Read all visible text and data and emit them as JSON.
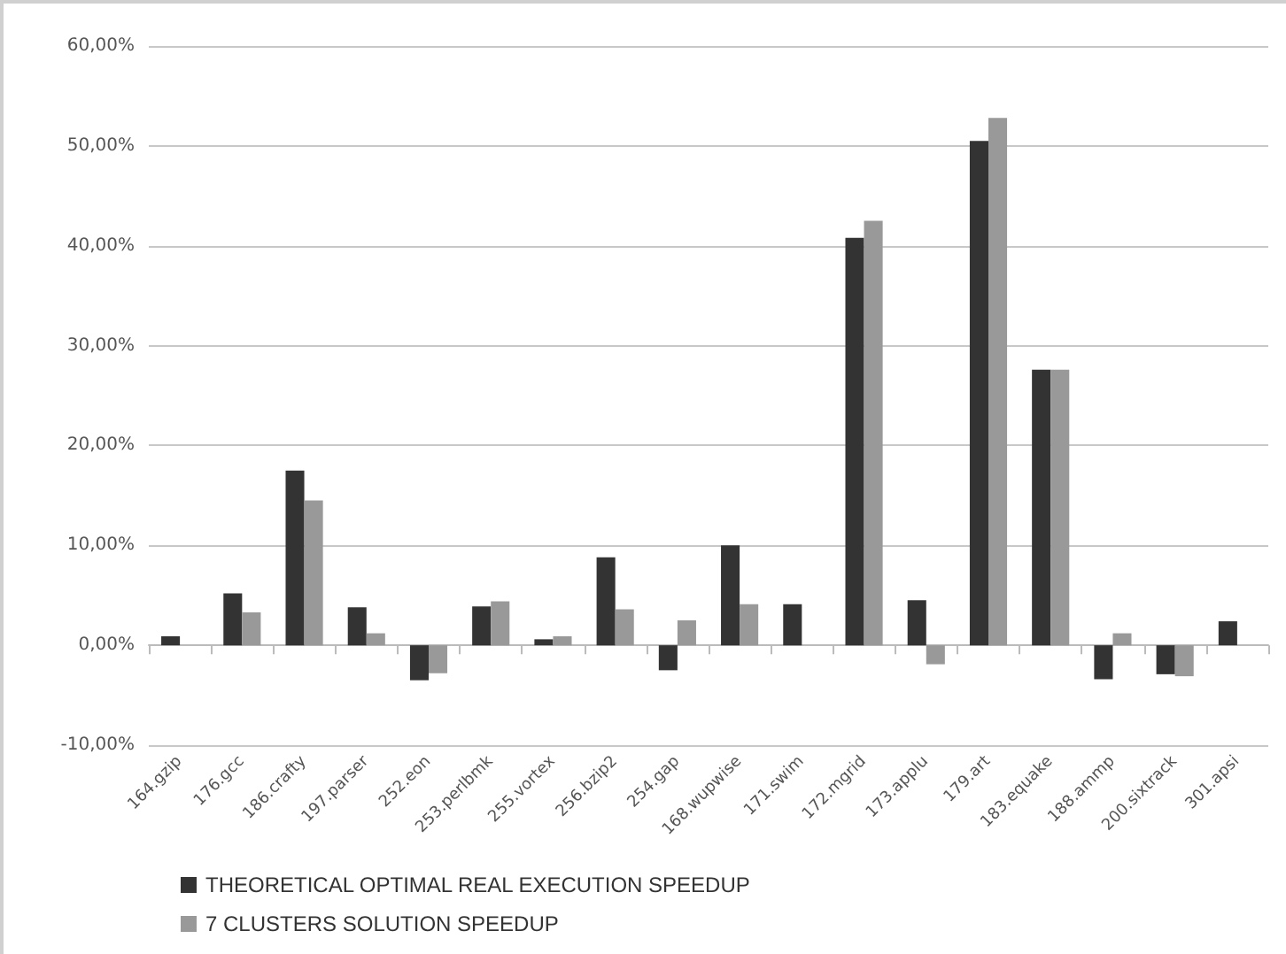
{
  "chart_data": {
    "type": "bar",
    "categories": [
      "164.gzip",
      "176.gcc",
      "186.crafty",
      "197.parser",
      "252.eon",
      "253.perlbmk",
      "255.vortex",
      "256.bzip2",
      "254.gap",
      "168.wupwise",
      "171.swim",
      "172.mgrid",
      "173.applu",
      "179.art",
      "183.equake",
      "188.ammp",
      "200.sixtrack",
      "301.apsi"
    ],
    "series": [
      {
        "name": "THEORETICAL OPTIMAL REAL EXECUTION SPEEDUP",
        "color": "#333333",
        "values": [
          0.9,
          5.2,
          17.5,
          3.8,
          -3.5,
          3.9,
          0.6,
          8.8,
          -2.5,
          10,
          4.1,
          40.8,
          4.5,
          50.5,
          27.6,
          -3.4,
          -2.9,
          2.4
        ]
      },
      {
        "name": "7 CLUSTERS SOLUTION SPEEDUP",
        "color": "#999999",
        "values": [
          0,
          3.3,
          14.5,
          1.2,
          -2.8,
          4.4,
          0.9,
          3.6,
          2.5,
          4.1,
          0,
          42.5,
          -1.9,
          52.8,
          27.6,
          1.2,
          -3.1,
          0
        ]
      }
    ],
    "ylim": [
      -10,
      60
    ],
    "yticks": [
      {
        "value": -10,
        "label": "-10,00%"
      },
      {
        "value": 0,
        "label": "0,00%"
      },
      {
        "value": 10,
        "label": "10,00%"
      },
      {
        "value": 20,
        "label": "20,00%"
      },
      {
        "value": 30,
        "label": "30,00%"
      },
      {
        "value": 40,
        "label": "40,00%"
      },
      {
        "value": 50,
        "label": "50,00%"
      },
      {
        "value": 60,
        "label": "60,00%"
      }
    ],
    "grid": "y",
    "legend": "bottom left"
  }
}
